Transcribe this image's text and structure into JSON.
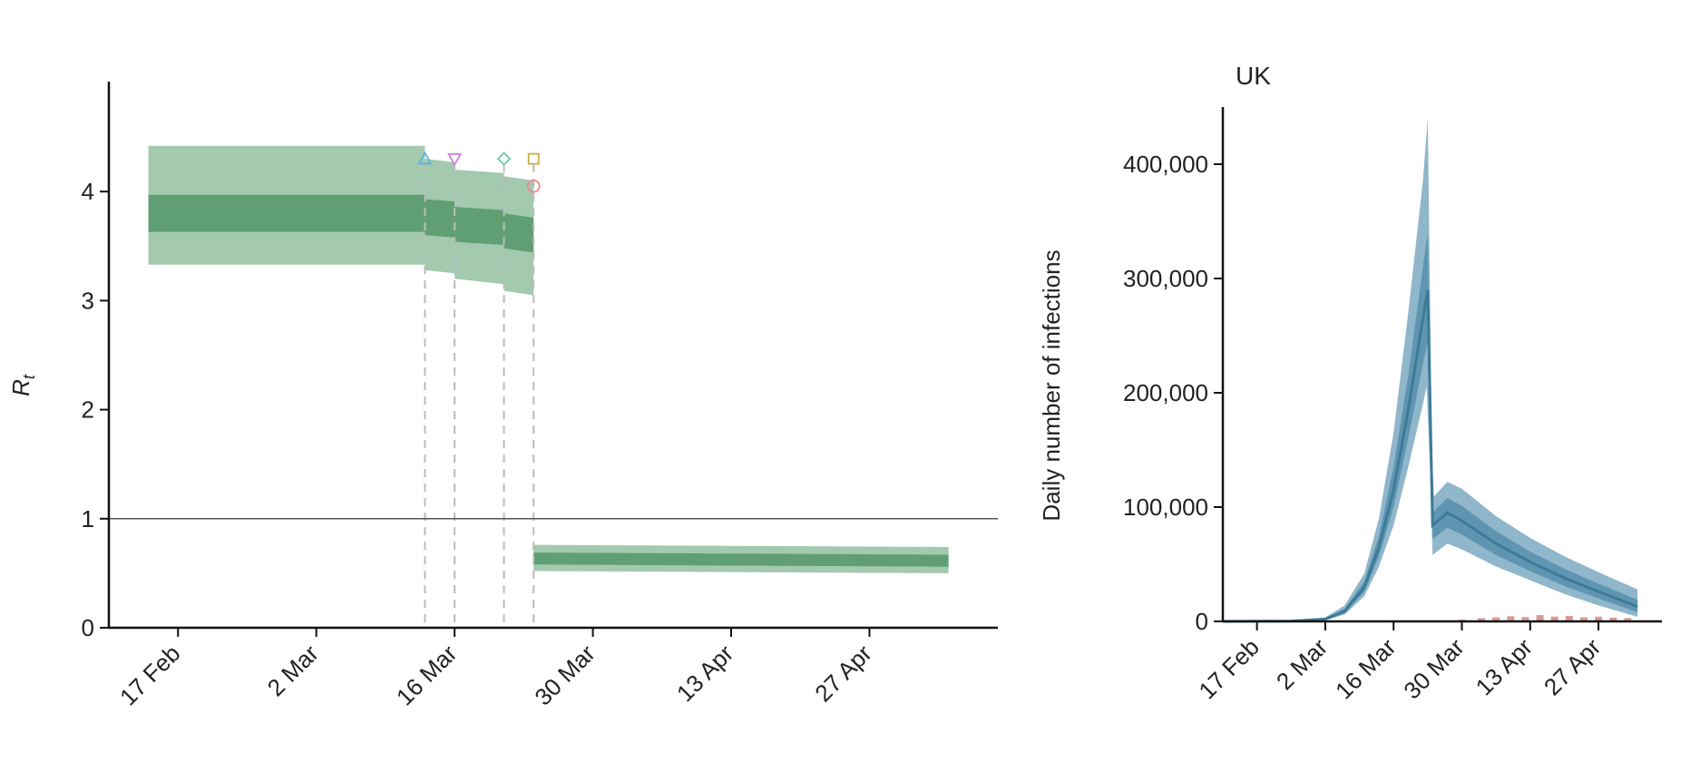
{
  "chart_data": [
    {
      "type": "area",
      "ylabel_main": "R",
      "ylabel_sub": "t",
      "ylim": [
        0,
        4.8
      ],
      "yticks": [
        0,
        1,
        2,
        3,
        4
      ],
      "xticks": [
        "17 Feb",
        "2 Mar",
        "16 Mar",
        "30 Mar",
        "13 Apr",
        "27 Apr"
      ],
      "x_range": [
        "2020-02-10",
        "2020-05-10"
      ],
      "reference_line": 1,
      "intervention_dates": [
        "2020-03-13",
        "2020-03-16",
        "2020-03-21",
        "2020-03-24"
      ],
      "markers": [
        {
          "date": "2020-03-13",
          "symbol": "triangle-up",
          "color": "#5bb3d9",
          "value": 4.3
        },
        {
          "date": "2020-03-16",
          "symbol": "triangle-down",
          "color": "#d07fe0",
          "value": 4.3
        },
        {
          "date": "2020-03-21",
          "symbol": "diamond",
          "color": "#6cc5a0",
          "value": 4.3
        },
        {
          "date": "2020-03-24",
          "symbol": "square",
          "color": "#c6b04a",
          "value": 4.3
        },
        {
          "date": "2020-03-24",
          "symbol": "circle",
          "color": "#ee8a8a",
          "value": 4.05
        }
      ],
      "series": [
        {
          "points": [
            {
              "date": "2020-02-14",
              "mid": 3.8,
              "lo50": 3.63,
              "hi50": 3.97,
              "lo95": 3.33,
              "hi95": 4.42
            },
            {
              "date": "2020-03-13",
              "mid": 3.8,
              "lo50": 3.63,
              "hi50": 3.97,
              "lo95": 3.33,
              "hi95": 4.42
            },
            {
              "date": "2020-03-13",
              "mid": 3.77,
              "lo50": 3.6,
              "hi50": 3.93,
              "lo95": 3.28,
              "hi95": 4.3
            },
            {
              "date": "2020-03-16",
              "mid": 3.75,
              "lo50": 3.58,
              "hi50": 3.91,
              "lo95": 3.25,
              "hi95": 4.27
            },
            {
              "date": "2020-03-16",
              "mid": 3.7,
              "lo50": 3.54,
              "hi50": 3.86,
              "lo95": 3.2,
              "hi95": 4.2
            },
            {
              "date": "2020-03-21",
              "mid": 3.67,
              "lo50": 3.51,
              "hi50": 3.83,
              "lo95": 3.15,
              "hi95": 4.17
            },
            {
              "date": "2020-03-21",
              "mid": 3.64,
              "lo50": 3.48,
              "hi50": 3.8,
              "lo95": 3.09,
              "hi95": 4.14
            },
            {
              "date": "2020-03-24",
              "mid": 3.6,
              "lo50": 3.44,
              "hi50": 3.76,
              "lo95": 3.05,
              "hi95": 4.1
            },
            {
              "date": "2020-03-24",
              "mid": 0.63,
              "lo50": 0.58,
              "hi50": 0.69,
              "lo95": 0.52,
              "hi95": 0.76
            },
            {
              "date": "2020-05-05",
              "mid": 0.61,
              "lo50": 0.56,
              "hi50": 0.67,
              "lo95": 0.5,
              "hi95": 0.74
            }
          ]
        }
      ],
      "colors": {
        "ci95": "#a3c9ae",
        "ci50": "#5f9f73",
        "guide": "#bbbbbb",
        "refline": "#555555",
        "axis": "#111111"
      }
    },
    {
      "type": "area",
      "title": "UK",
      "ylabel": "Daily number of infections",
      "ylim": [
        0,
        450000
      ],
      "yticks": [
        0,
        100000,
        200000,
        300000,
        400000
      ],
      "ytick_labels": [
        "0",
        "100,000",
        "200,000",
        "300,000",
        "400,000"
      ],
      "xticks": [
        "17 Feb",
        "2 Mar",
        "16 Mar",
        "30 Mar",
        "13 Apr",
        "27 Apr"
      ],
      "x_range": [
        "2020-02-10",
        "2020-05-10"
      ],
      "series": [
        {
          "points": [
            {
              "date": "2020-02-10",
              "mid": 0,
              "lo50": 0,
              "hi50": 0,
              "lo95": 0,
              "hi95": 0
            },
            {
              "date": "2020-02-24",
              "mid": 300,
              "lo50": 200,
              "hi50": 400,
              "lo95": 100,
              "hi95": 600
            },
            {
              "date": "2020-03-02",
              "mid": 2000,
              "lo50": 1500,
              "hi50": 2600,
              "lo95": 1000,
              "hi95": 3500
            },
            {
              "date": "2020-03-06",
              "mid": 9000,
              "lo50": 7500,
              "hi50": 11000,
              "lo95": 6000,
              "hi95": 14000
            },
            {
              "date": "2020-03-10",
              "mid": 30000,
              "lo50": 26000,
              "hi50": 35000,
              "lo95": 22000,
              "hi95": 42000
            },
            {
              "date": "2020-03-13",
              "mid": 65000,
              "lo50": 57000,
              "hi50": 75000,
              "lo95": 48000,
              "hi95": 90000
            },
            {
              "date": "2020-03-16",
              "mid": 115000,
              "lo50": 100000,
              "hi50": 135000,
              "lo95": 84000,
              "hi95": 165000
            },
            {
              "date": "2020-03-19",
              "mid": 185000,
              "lo50": 160000,
              "hi50": 215000,
              "lo95": 135000,
              "hi95": 270000
            },
            {
              "date": "2020-03-22",
              "mid": 265000,
              "lo50": 225000,
              "hi50": 310000,
              "lo95": 190000,
              "hi95": 385000
            },
            {
              "date": "2020-03-23",
              "mid": 290000,
              "lo50": 245000,
              "hi50": 340000,
              "lo95": 210000,
              "hi95": 440000
            },
            {
              "date": "2020-03-24",
              "mid": 84000,
              "lo50": 72000,
              "hi50": 95000,
              "lo95": 58000,
              "hi95": 108000
            },
            {
              "date": "2020-03-27",
              "mid": 95000,
              "lo50": 82000,
              "hi50": 108000,
              "lo95": 68000,
              "hi95": 122000
            },
            {
              "date": "2020-03-30",
              "mid": 88000,
              "lo50": 76000,
              "hi50": 101000,
              "lo95": 63000,
              "hi95": 116000
            },
            {
              "date": "2020-04-06",
              "mid": 68000,
              "lo50": 58000,
              "hi50": 79000,
              "lo95": 48000,
              "hi95": 92000
            },
            {
              "date": "2020-04-13",
              "mid": 52000,
              "lo50": 44000,
              "hi50": 61000,
              "lo95": 36000,
              "hi95": 73000
            },
            {
              "date": "2020-04-20",
              "mid": 38000,
              "lo50": 31000,
              "hi50": 46000,
              "lo95": 24000,
              "hi95": 57000
            },
            {
              "date": "2020-04-27",
              "mid": 26000,
              "lo50": 20000,
              "hi50": 33000,
              "lo95": 14000,
              "hi95": 43000
            },
            {
              "date": "2020-05-05",
              "mid": 13000,
              "lo50": 8000,
              "hi50": 19000,
              "lo95": 4000,
              "hi95": 28000
            }
          ]
        }
      ],
      "observed": [
        {
          "date": "2020-03-26",
          "value": 800
        },
        {
          "date": "2020-03-30",
          "value": 1500
        },
        {
          "date": "2020-04-03",
          "value": 2800
        },
        {
          "date": "2020-04-06",
          "value": 3500
        },
        {
          "date": "2020-04-09",
          "value": 4500
        },
        {
          "date": "2020-04-12",
          "value": 3800
        },
        {
          "date": "2020-04-15",
          "value": 5500
        },
        {
          "date": "2020-04-18",
          "value": 4200
        },
        {
          "date": "2020-04-21",
          "value": 4800
        },
        {
          "date": "2020-04-24",
          "value": 3600
        },
        {
          "date": "2020-04-27",
          "value": 4100
        },
        {
          "date": "2020-04-30",
          "value": 3300
        },
        {
          "date": "2020-05-03",
          "value": 2900
        }
      ],
      "colors": {
        "ci95": "#8fb6cb",
        "ci50": "#5f95b1",
        "mid": "#3d7a98",
        "observed": "#d99a94",
        "axis": "#111111"
      }
    }
  ]
}
